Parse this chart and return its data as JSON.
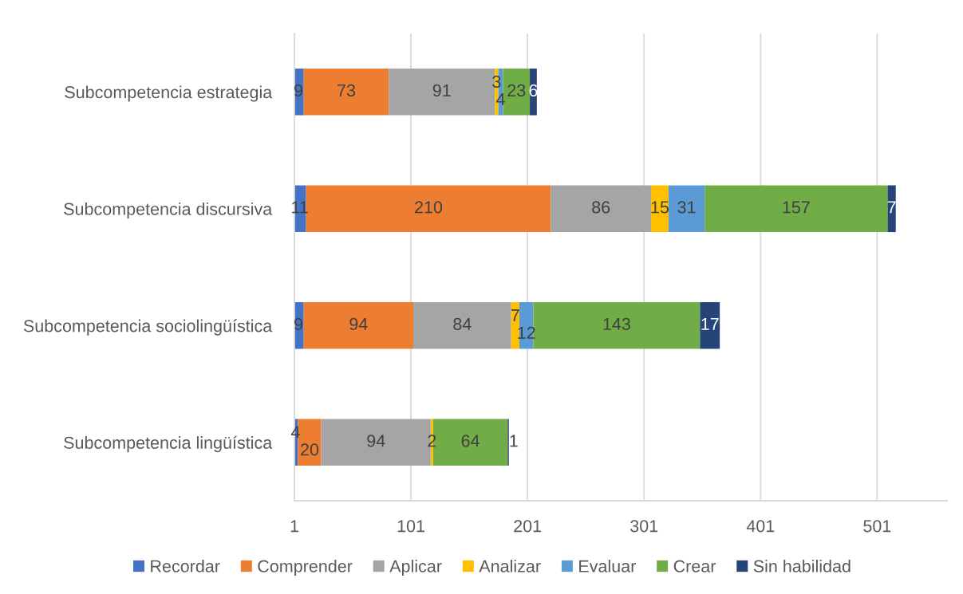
{
  "chart_data": {
    "type": "bar",
    "orientation": "horizontal",
    "stacked": true,
    "categories": [
      "Subcompetencia estrategia",
      "Subcompetencia discursiva",
      "Subcompetencia sociolingüística",
      "Subcompetencia lingüística"
    ],
    "series": [
      {
        "name": "Recordar",
        "color": "#4472c4",
        "values": [
          9,
          11,
          9,
          4
        ]
      },
      {
        "name": "Comprender",
        "color": "#ed7d31",
        "values": [
          73,
          210,
          94,
          20
        ]
      },
      {
        "name": "Aplicar",
        "color": "#a5a5a5",
        "values": [
          91,
          86,
          84,
          94
        ]
      },
      {
        "name": "Analizar",
        "color": "#ffc000",
        "values": [
          3,
          15,
          7,
          2
        ]
      },
      {
        "name": "Evaluar",
        "color": "#5b9bd5",
        "values": [
          4,
          31,
          12,
          null
        ]
      },
      {
        "name": "Crear",
        "color": "#70ad47",
        "values": [
          23,
          157,
          143,
          64
        ]
      },
      {
        "name": "Sin habilidad",
        "color": "#264478",
        "values": [
          6,
          7,
          17,
          1
        ]
      }
    ],
    "xlim": [
      1,
      561
    ],
    "xticks": [
      1,
      101,
      201,
      301,
      401,
      501
    ],
    "grid": "x",
    "legend": "bottom",
    "data_labels": true
  }
}
